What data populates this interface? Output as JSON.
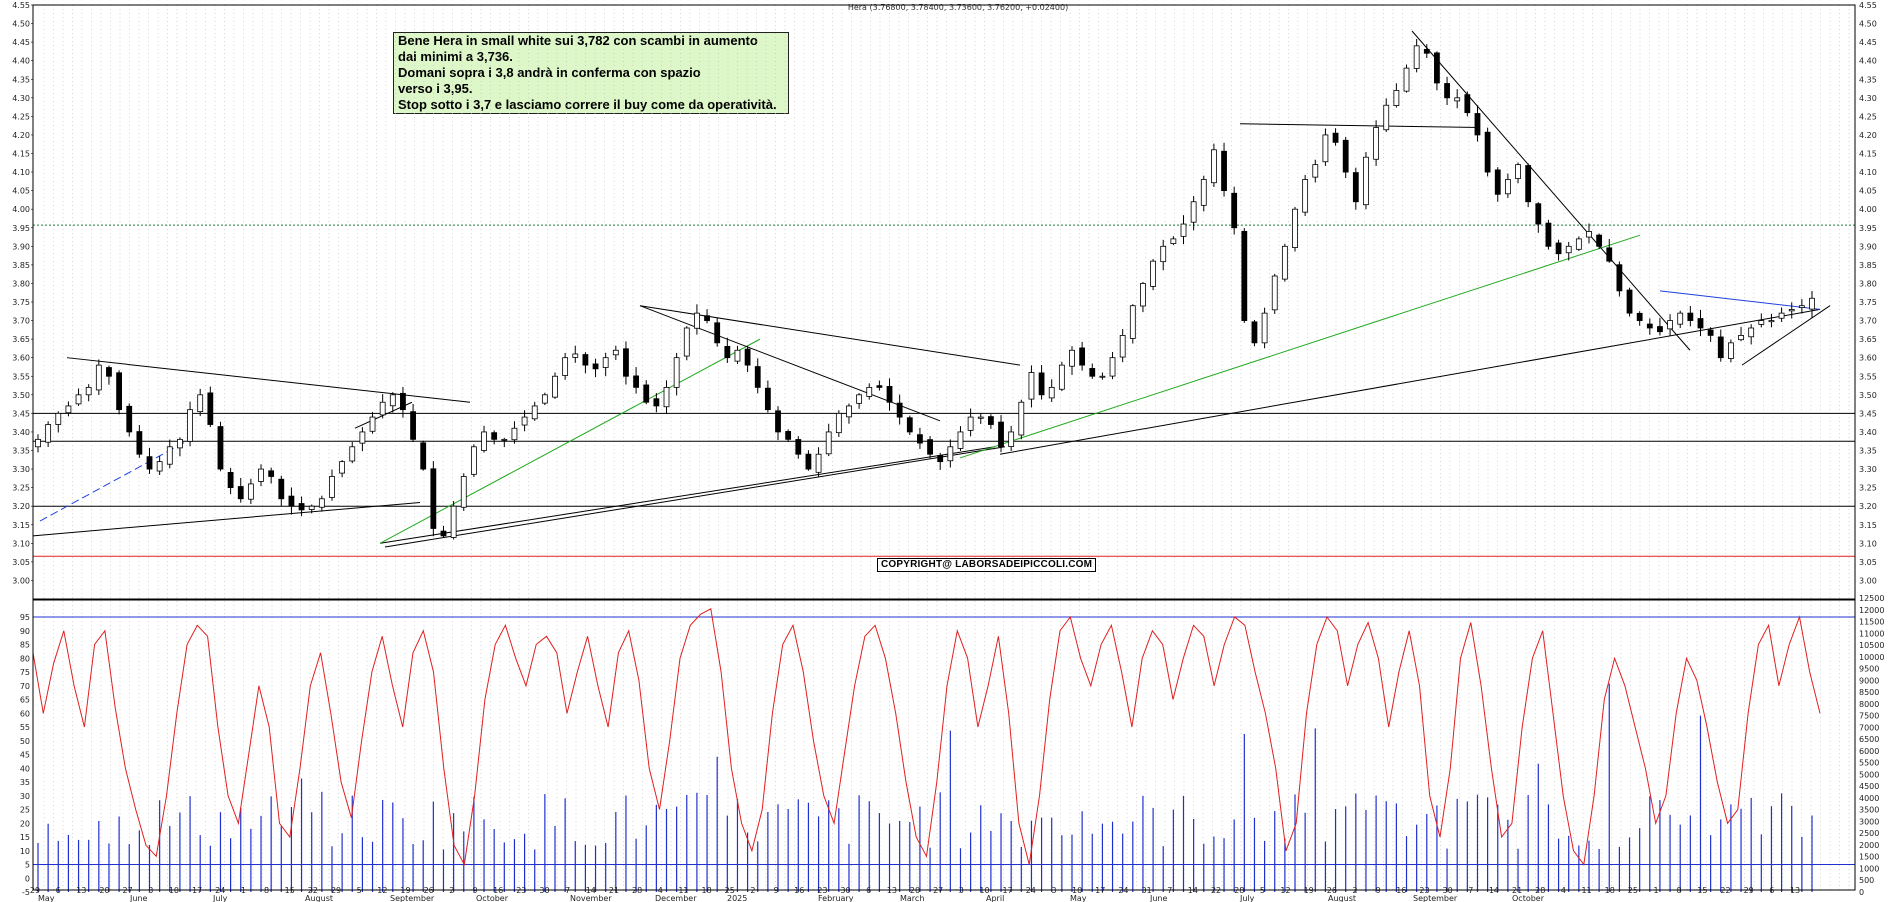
{
  "chart_data": {
    "type": "candlestick",
    "title": "Hera (3.76800, 3.78400, 3.73600, 3.76200, +0.02400)",
    "annotation_lines": [
      "Bene Hera in small white sui 3,782 con scambi in aumento",
      "dai minimi a 3,736.",
      "Domani sopra i 3,8 andrà in conferma con spazio",
      "verso i 3,95.",
      "Stop sotto i 3,7 e lasciamo correre il buy come da operatività."
    ],
    "copyright": "COPYRIGHT@ LABORSADEIPICCOLI.COM",
    "price_panel": {
      "ylim": [
        2.95,
        4.55
      ],
      "yticks": [
        "4.55",
        "4.50",
        "4.45",
        "4.40",
        "4.35",
        "4.30",
        "4.25",
        "4.20",
        "4.15",
        "4.10",
        "4.05",
        "4.00",
        "3.95",
        "3.90",
        "3.85",
        "3.80",
        "3.75",
        "3.70",
        "3.65",
        "3.60",
        "3.55",
        "3.50",
        "3.45",
        "3.40",
        "3.35",
        "3.30",
        "3.25",
        "3.20",
        "3.15",
        "3.10",
        "3.05",
        "3.00"
      ],
      "yticks_right": [
        "4.55",
        "4.50",
        "4.45",
        "4.40",
        "4.35",
        "4.30",
        "4.25",
        "4.20",
        "4.15",
        "4.10",
        "4.05",
        "4.00",
        "3.95",
        "3.90",
        "3.85",
        "3.80",
        "3.75",
        "3.70",
        "3.65",
        "3.60",
        "3.55",
        "3.50",
        "3.45",
        "3.40",
        "3.35",
        "3.30",
        "3.25",
        "3.20",
        "3.15",
        "3.10",
        "3.05",
        "3.00"
      ],
      "series_close": [
        3.38,
        3.42,
        3.45,
        3.47,
        3.5,
        3.52,
        3.58,
        3.55,
        3.46,
        3.4,
        3.34,
        3.3,
        3.32,
        3.36,
        3.38,
        3.46,
        3.5,
        3.42,
        3.3,
        3.25,
        3.22,
        3.26,
        3.3,
        3.28,
        3.22,
        3.2,
        3.19,
        3.2,
        3.22,
        3.28,
        3.32,
        3.36,
        3.4,
        3.44,
        3.48,
        3.5,
        3.46,
        3.38,
        3.3,
        3.14,
        3.12,
        3.2,
        3.28,
        3.36,
        3.4,
        3.38,
        3.38,
        3.41,
        3.44,
        3.47,
        3.5,
        3.55,
        3.6,
        3.61,
        3.58,
        3.57,
        3.6,
        3.62,
        3.55,
        3.52,
        3.48,
        3.47,
        3.52,
        3.6,
        3.68,
        3.72,
        3.7,
        3.64,
        3.6,
        3.62,
        3.58,
        3.52,
        3.46,
        3.4,
        3.38,
        3.34,
        3.3,
        3.34,
        3.4,
        3.45,
        3.47,
        3.5,
        3.52,
        3.52,
        3.48,
        3.44,
        3.4,
        3.37,
        3.34,
        3.32,
        3.36,
        3.4,
        3.44,
        3.44,
        3.42,
        3.36,
        3.4,
        3.48,
        3.56,
        3.5,
        3.52,
        3.58,
        3.62,
        3.58,
        3.55,
        3.55,
        3.6,
        3.66,
        3.74,
        3.8,
        3.86,
        3.9,
        3.92,
        3.96,
        4.02,
        4.08,
        4.16,
        4.05,
        3.95,
        3.7,
        3.64,
        3.72,
        3.82,
        3.9,
        4.0,
        4.08,
        4.12,
        4.2,
        4.18,
        4.1,
        4.02,
        4.14,
        4.22,
        4.28,
        4.32,
        4.38,
        4.44,
        4.42,
        4.34,
        4.3,
        4.3,
        4.26,
        4.2,
        4.1,
        4.04,
        4.08,
        4.12,
        4.02,
        3.96,
        3.9,
        3.88,
        3.9,
        3.92,
        3.94,
        3.9,
        3.86,
        3.78,
        3.72,
        3.7,
        3.68,
        3.67,
        3.7,
        3.72,
        3.7,
        3.68,
        3.66,
        3.6,
        3.64,
        3.66,
        3.68,
        3.7,
        3.7,
        3.72,
        3.73,
        3.74,
        3.76
      ]
    },
    "indicator_panel": {
      "yticks_left": [
        "95",
        "90",
        "85",
        "80",
        "75",
        "70",
        "65",
        "60",
        "55",
        "50",
        "45",
        "40",
        "35",
        "30",
        "25",
        "20",
        "15",
        "10",
        "5",
        "0",
        "-5"
      ],
      "yticks_right": [
        "12500",
        "12000",
        "11500",
        "11000",
        "10500",
        "10000",
        "9500",
        "9000",
        "8500",
        "8000",
        "7500",
        "7000",
        "6500",
        "6000",
        "5500",
        "5000",
        "4500",
        "4000",
        "3500",
        "3000",
        "2500",
        "2000",
        "1500",
        "1000",
        "500",
        "0"
      ],
      "oscillator": [
        82,
        60,
        78,
        90,
        70,
        55,
        85,
        90,
        62,
        40,
        25,
        12,
        8,
        30,
        60,
        85,
        92,
        88,
        55,
        30,
        20,
        45,
        70,
        55,
        20,
        15,
        40,
        70,
        82,
        60,
        35,
        22,
        50,
        75,
        88,
        70,
        55,
        82,
        90,
        75,
        40,
        12,
        5,
        30,
        65,
        85,
        92,
        80,
        70,
        85,
        88,
        82,
        60,
        75,
        88,
        70,
        55,
        82,
        90,
        72,
        40,
        25,
        50,
        80,
        92,
        96,
        98,
        75,
        40,
        20,
        10,
        25,
        60,
        85,
        92,
        75,
        50,
        30,
        20,
        45,
        70,
        88,
        92,
        80,
        60,
        35,
        15,
        8,
        35,
        70,
        90,
        80,
        55,
        70,
        88,
        60,
        20,
        5,
        30,
        65,
        90,
        95,
        80,
        70,
        85,
        92,
        75,
        55,
        80,
        90,
        85,
        65,
        80,
        92,
        88,
        70,
        85,
        95,
        92,
        75,
        60,
        40,
        10,
        20,
        60,
        85,
        95,
        90,
        70,
        85,
        93,
        80,
        55,
        75,
        90,
        70,
        30,
        15,
        40,
        80,
        93,
        70,
        40,
        15,
        20,
        55,
        80,
        90,
        60,
        30,
        10,
        5,
        30,
        65,
        80,
        70,
        55,
        40,
        20,
        30,
        60,
        80,
        72,
        55,
        35,
        20,
        25,
        60,
        85,
        92,
        70,
        85,
        95,
        75,
        60
      ]
    },
    "x_months": [
      "May",
      "June",
      "July",
      "August",
      "September",
      "October",
      "November",
      "December",
      "2025",
      "February",
      "March",
      "April",
      "May",
      "June",
      "July",
      "August",
      "September",
      "October"
    ],
    "x_days": [
      "29",
      "6",
      "13",
      "20",
      "27",
      "3",
      "10",
      "17",
      "24",
      "1",
      "8",
      "15",
      "22",
      "29",
      "5",
      "12",
      "19",
      "26",
      "2",
      "9",
      "16",
      "23",
      "30",
      "7",
      "14",
      "21",
      "28",
      "4",
      "11",
      "18",
      "25",
      "2",
      "9",
      "16",
      "23",
      "30",
      "6",
      "13",
      "20",
      "27",
      "3",
      "10",
      "17",
      "24",
      "3",
      "10",
      "17",
      "24",
      "31",
      "7",
      "14",
      "22",
      "28",
      "5",
      "12",
      "19",
      "26",
      "2",
      "9",
      "16",
      "23",
      "30",
      "7",
      "14",
      "21",
      "28",
      "4",
      "11",
      "18",
      "25",
      "1",
      "8",
      "15",
      "22",
      "29",
      "6",
      "13"
    ],
    "horizontal_levels": [
      {
        "value": 3.957,
        "color": "#1a7a3a",
        "style": "dotted"
      },
      {
        "value": 3.45,
        "color": "#000000",
        "style": "solid"
      },
      {
        "value": 3.375,
        "color": "#000000",
        "style": "solid"
      },
      {
        "value": 3.2,
        "color": "#000000",
        "style": "solid"
      },
      {
        "value": 3.065,
        "color": "#e02020",
        "style": "solid"
      }
    ],
    "colors": {
      "candles": "#000000",
      "oscillator": "#e02020",
      "volume": "#2030d0",
      "green_line": "#22aa22",
      "blue_line": "#2040e0"
    }
  }
}
